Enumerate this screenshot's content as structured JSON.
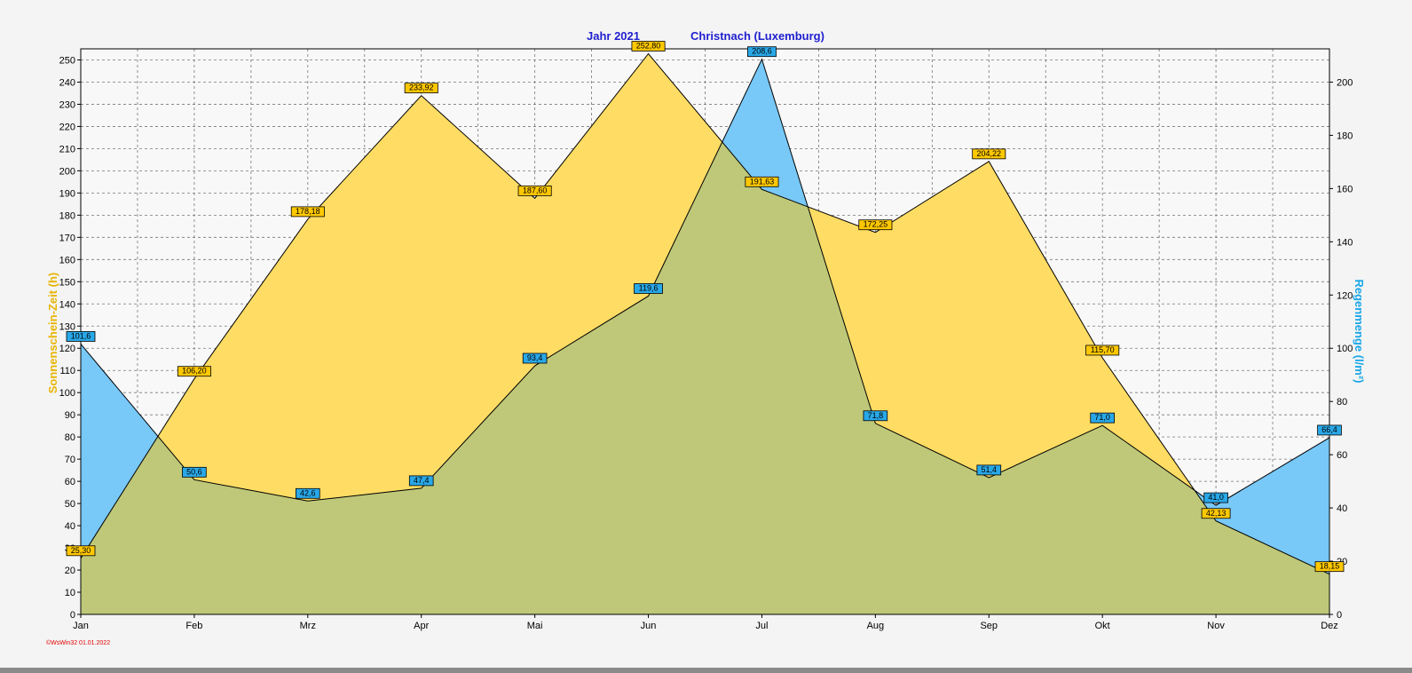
{
  "chart_data": {
    "type": "area",
    "title_left": "Jahr  2021",
    "title_right": "Christnach (Luxemburg)",
    "categories": [
      "Jan",
      "Feb",
      "Mrz",
      "Apr",
      "Mai",
      "Jun",
      "Jul",
      "Aug",
      "Sep",
      "Okt",
      "Nov",
      "Dez"
    ],
    "ylabel_left": "Sonnenschein-Zeit  (h)",
    "ylabel_right": "Regenmenge   (l/m²)",
    "ylim_left": [
      0,
      255
    ],
    "ylim_right": [
      0,
      212.5
    ],
    "yticks_left": [
      0,
      10,
      20,
      30,
      40,
      50,
      60,
      70,
      80,
      90,
      100,
      110,
      120,
      130,
      140,
      150,
      160,
      170,
      180,
      190,
      200,
      210,
      220,
      230,
      240,
      250
    ],
    "yticks_right": [
      0,
      20,
      40,
      60,
      80,
      100,
      120,
      140,
      160,
      180,
      200
    ],
    "grid": true,
    "series": [
      {
        "axis": "left",
        "color": "#ffdc64",
        "label_color": "#ffc800",
        "values": [
          25.3,
          106.2,
          178.18,
          233.92,
          187.6,
          252.8,
          191.63,
          172.25,
          204.22,
          115.7,
          42.13,
          18.15
        ],
        "labels": [
          "25,30",
          "106,20",
          "178,18",
          "233,92",
          "187,60",
          "252,80",
          "191,63",
          "172,25",
          "204,22",
          "115,70",
          "42,13",
          "18,15"
        ]
      },
      {
        "axis": "right",
        "color": "#78c8f8",
        "label_color": "#29a8e8",
        "values": [
          101.6,
          50.6,
          42.6,
          47.4,
          93.4,
          119.6,
          208.6,
          71.8,
          51.4,
          71.0,
          41.0,
          66.4
        ],
        "labels": [
          "101,6",
          "50,6",
          "42,6",
          "47,4",
          "93,4",
          "119,6",
          "208,6",
          "71,8",
          "51,4",
          "71,0",
          "41,0",
          "66,4"
        ]
      }
    ],
    "overlap_color": "#bec878"
  },
  "footer": "©WsWin32  01.01.2022"
}
